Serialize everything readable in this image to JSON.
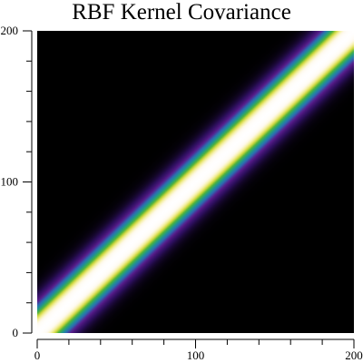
{
  "chart_data": {
    "type": "heatmap",
    "title": "RBF Kernel Covariance",
    "xlabel": "",
    "ylabel": "",
    "xlim": [
      0,
      200
    ],
    "ylim": [
      0,
      200
    ],
    "grid_size": 200,
    "lengthscale": 12,
    "vmin": 0,
    "vmax": 1,
    "orientation": "anti-diagonal",
    "colormap": [
      "#000000",
      "#2d0f5e",
      "#5a1d8c",
      "#2a6fb5",
      "#1f9a8a",
      "#4fb33a",
      "#d4d83a",
      "#f5f0a0",
      "#fffaf0",
      "#ffffff"
    ],
    "colorbar": false,
    "grid": false,
    "x_ticks": [
      {
        "value": 0,
        "label": "0"
      },
      {
        "value": 100,
        "label": "100"
      },
      {
        "value": 200,
        "label": "200"
      }
    ],
    "y_ticks": [
      {
        "value": 0,
        "label": "0"
      },
      {
        "value": 100,
        "label": "100"
      },
      {
        "value": 200,
        "label": "200"
      }
    ],
    "minor_tick_step": 20
  }
}
